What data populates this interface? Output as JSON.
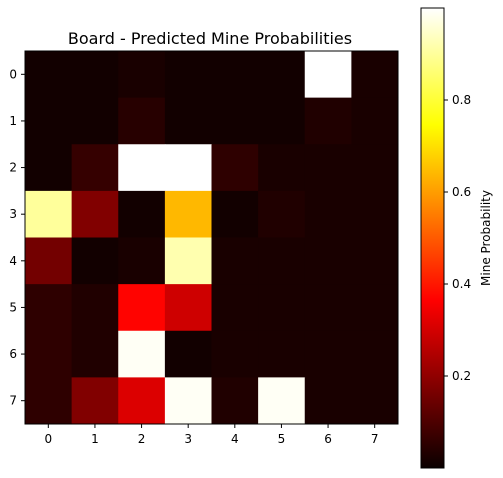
{
  "chart_data": {
    "type": "heatmap",
    "title": "Board - Predicted Mine Probabilities",
    "xlabel": "",
    "ylabel": "",
    "x_ticks": [
      "0",
      "1",
      "2",
      "3",
      "4",
      "5",
      "6",
      "7"
    ],
    "y_ticks": [
      "0",
      "1",
      "2",
      "3",
      "4",
      "5",
      "6",
      "7"
    ],
    "colormap": "hot",
    "vmin": 0.0,
    "vmax": 1.0,
    "colorbar_label": "Mine Probability",
    "colorbar_ticks": [
      "0.2",
      "0.4",
      "0.6",
      "0.8"
    ],
    "colorbar_tick_values": [
      0.2,
      0.4,
      0.6,
      0.8
    ],
    "values": [
      [
        0.01,
        0.01,
        0.02,
        0.01,
        0.01,
        0.01,
        1.0,
        0.02
      ],
      [
        0.01,
        0.01,
        0.04,
        0.01,
        0.01,
        0.01,
        0.03,
        0.02
      ],
      [
        0.01,
        0.06,
        1.0,
        1.0,
        0.05,
        0.02,
        0.02,
        0.02
      ],
      [
        0.9,
        0.17,
        0.01,
        0.64,
        0.01,
        0.03,
        0.02,
        0.02
      ],
      [
        0.15,
        0.01,
        0.02,
        0.92,
        0.02,
        0.02,
        0.02,
        0.02
      ],
      [
        0.05,
        0.03,
        0.37,
        0.28,
        0.02,
        0.02,
        0.02,
        0.02
      ],
      [
        0.05,
        0.03,
        0.99,
        0.01,
        0.02,
        0.02,
        0.02,
        0.02
      ],
      [
        0.05,
        0.17,
        0.3,
        0.99,
        0.03,
        0.99,
        0.02,
        0.02
      ]
    ]
  }
}
